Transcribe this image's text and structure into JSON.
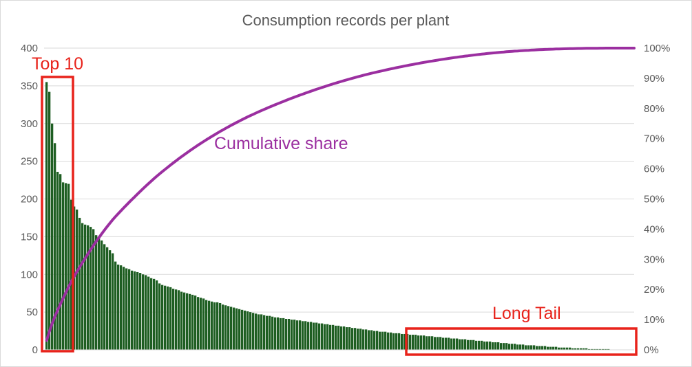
{
  "chart_data": {
    "type": "bar",
    "title": "Consumption records per plant",
    "xlabel": "",
    "ylabel": "",
    "ylim": [
      0,
      400
    ],
    "y2lim": [
      0,
      1
    ],
    "yticks": [
      "0",
      "50",
      "100",
      "150",
      "200",
      "250",
      "300",
      "350",
      "400"
    ],
    "y2ticks": [
      "0%",
      "10%",
      "20%",
      "30%",
      "40%",
      "50%",
      "60%",
      "70%",
      "80%",
      "90%",
      "100%"
    ],
    "grid": true,
    "series": [
      {
        "type": "bar",
        "values": [
          355,
          342,
          300,
          274,
          236,
          233,
          222,
          221,
          220,
          199,
          190,
          186,
          175,
          168,
          166,
          165,
          163,
          160,
          152,
          148,
          145,
          140,
          136,
          132,
          128,
          117,
          113,
          112,
          110,
          108,
          107,
          105,
          104,
          103,
          102,
          100,
          99,
          97,
          95,
          94,
          92,
          88,
          86,
          85,
          84,
          83,
          81,
          80,
          79,
          77,
          76,
          75,
          74,
          73,
          72,
          70,
          69,
          68,
          66,
          65,
          64,
          63,
          63,
          62,
          60,
          59,
          58,
          57,
          56,
          55,
          54,
          53,
          52,
          51,
          50,
          49,
          48,
          47,
          47,
          46,
          45,
          45,
          44,
          43,
          43,
          42,
          42,
          41,
          41,
          40,
          40,
          39,
          39,
          38,
          38,
          37,
          37,
          36,
          36,
          35,
          35,
          34,
          34,
          33,
          33,
          32,
          32,
          31,
          31,
          30,
          30,
          29,
          29,
          28,
          28,
          27,
          27,
          26,
          26,
          25,
          25,
          24,
          24,
          24,
          23,
          23,
          22,
          22,
          22,
          21,
          21,
          21,
          20,
          20,
          20,
          19,
          19,
          19,
          18,
          18,
          18,
          17,
          17,
          17,
          16,
          16,
          16,
          15,
          15,
          15,
          14,
          14,
          14,
          13,
          13,
          13,
          12,
          12,
          12,
          11,
          11,
          11,
          10,
          10,
          10,
          9,
          9,
          9,
          8,
          8,
          8,
          7,
          7,
          7,
          6,
          6,
          6,
          6,
          5,
          5,
          5,
          5,
          4,
          4,
          4,
          4,
          3,
          3,
          3,
          3,
          3,
          2,
          2,
          2,
          2,
          2,
          2,
          1,
          1,
          1,
          1,
          1,
          1,
          1,
          1
        ],
        "color": "#1e5e22"
      },
      {
        "type": "line",
        "axis": "secondary",
        "derived_from": "cumulative share of bar values",
        "color": "#9b2fa0"
      }
    ],
    "annotations": [
      {
        "text": "Top 10",
        "color": "#e8231b",
        "covers_bars": [
          1,
          10
        ]
      },
      {
        "text": "Long Tail",
        "color": "#e8231b",
        "covers_bars": [
          145,
          206
        ]
      },
      {
        "text": "Cumulative share",
        "color": "#9b2fa0"
      }
    ]
  }
}
